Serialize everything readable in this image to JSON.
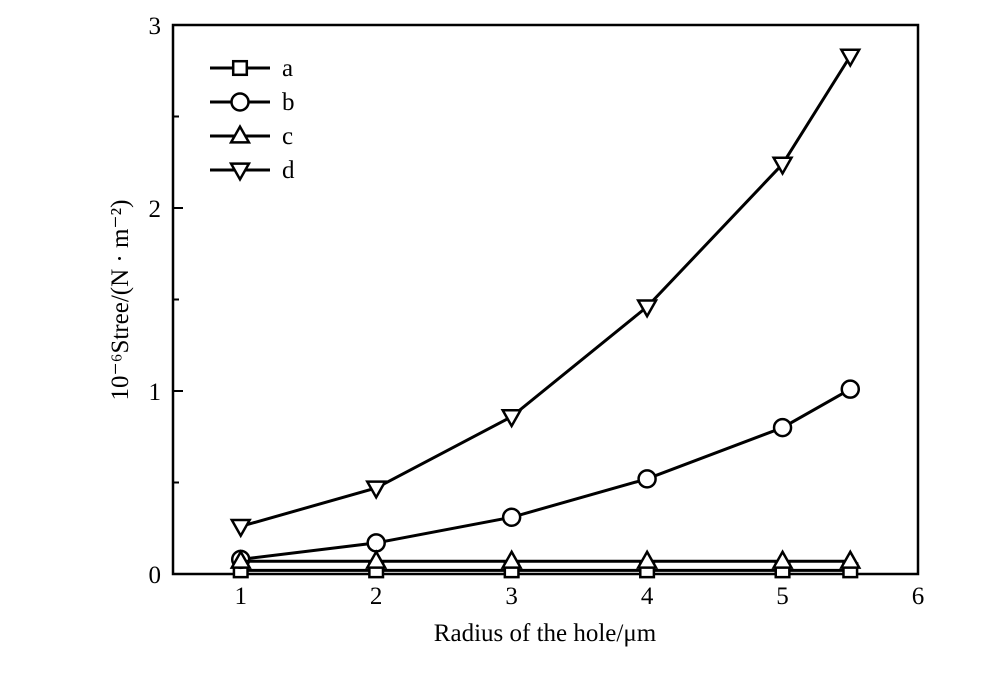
{
  "chart_data": {
    "type": "line",
    "xlabel": "Radius of the hole/μm",
    "ylabel": "10⁻⁶Stree/(N · m⁻²)",
    "xlim": [
      0.5,
      6
    ],
    "ylim": [
      0,
      3
    ],
    "xticks": [
      1,
      2,
      3,
      4,
      5,
      6
    ],
    "yticks": [
      0,
      1,
      2,
      3
    ],
    "grid": false,
    "legend_position": "top-left",
    "x": [
      1,
      2,
      3,
      4,
      5,
      5.5
    ],
    "series": [
      {
        "name": "a",
        "marker": "square",
        "values": [
          0.02,
          0.02,
          0.02,
          0.02,
          0.02,
          0.02
        ]
      },
      {
        "name": "b",
        "marker": "circle",
        "values": [
          0.08,
          0.17,
          0.31,
          0.52,
          0.8,
          1.01
        ]
      },
      {
        "name": "c",
        "marker": "triangle-up",
        "values": [
          0.07,
          0.07,
          0.07,
          0.07,
          0.07,
          0.07
        ]
      },
      {
        "name": "d",
        "marker": "triangle-down",
        "values": [
          0.26,
          0.47,
          0.86,
          1.46,
          2.24,
          2.83
        ]
      }
    ],
    "colors": {
      "line": "#000000",
      "marker_fill": "#ffffff"
    }
  }
}
